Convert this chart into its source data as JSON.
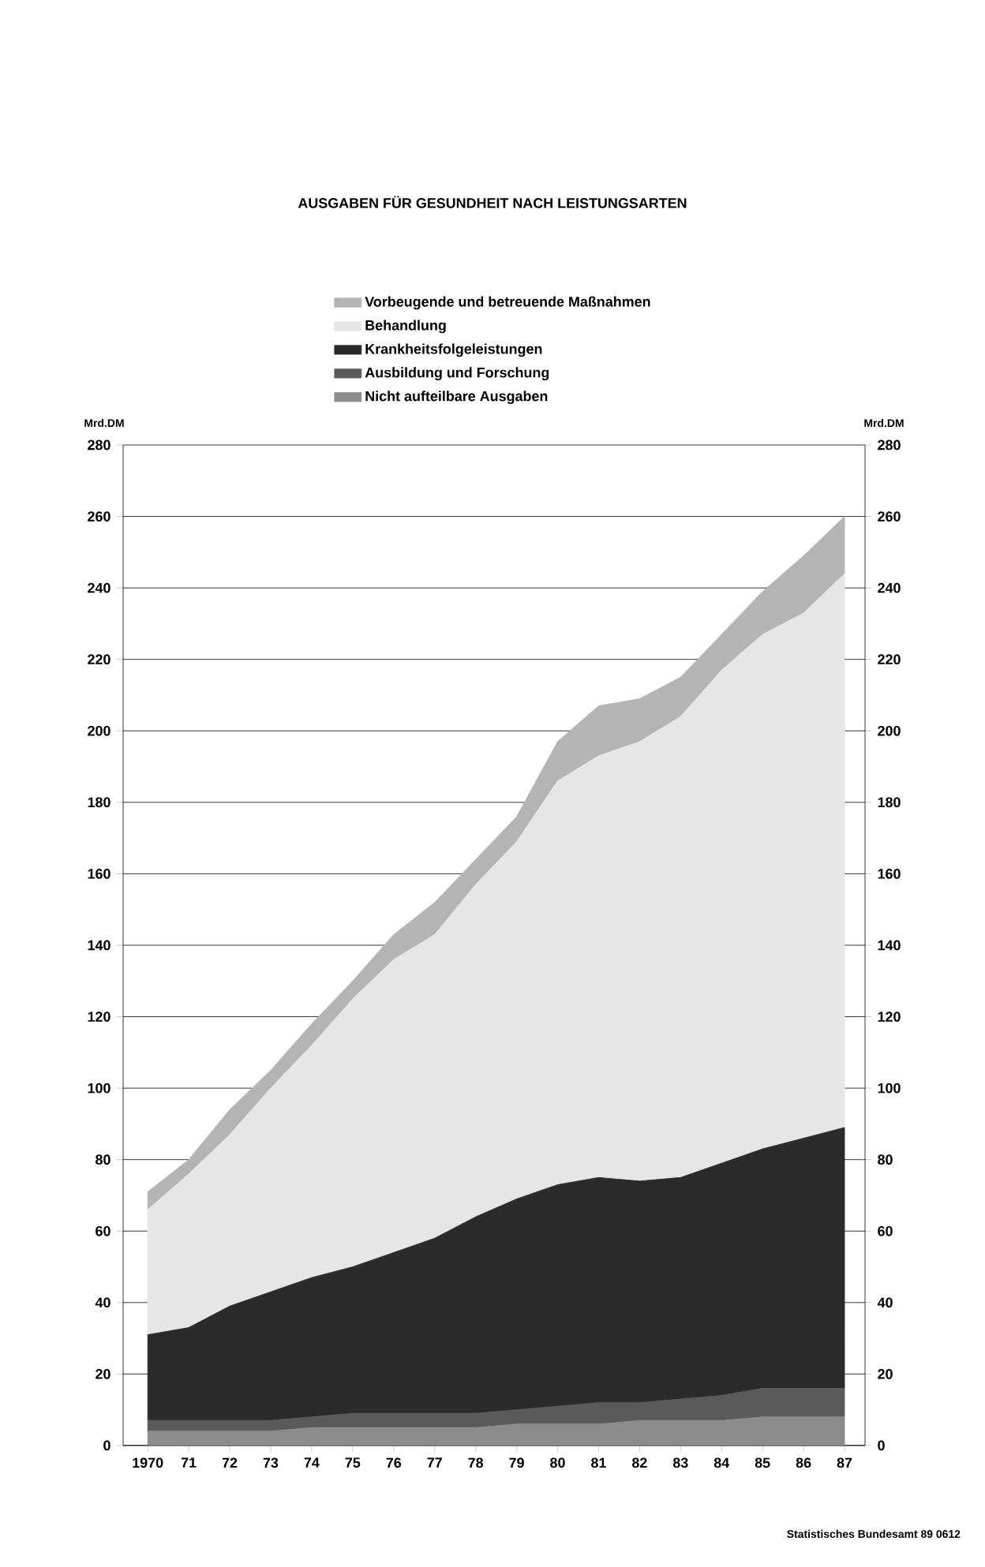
{
  "chart_data": {
    "type": "area",
    "stacked": true,
    "title": "AUSGABEN FÜR GESUNDHEIT NACH LEISTUNGSARTEN",
    "categories": [
      "1970",
      "71",
      "72",
      "73",
      "74",
      "75",
      "76",
      "77",
      "78",
      "79",
      "80",
      "81",
      "82",
      "83",
      "84",
      "85",
      "86",
      "87"
    ],
    "series": [
      {
        "name": "Nicht aufteilbare Ausgaben",
        "color": "#8c8c8c",
        "values": [
          4,
          4,
          4,
          4,
          5,
          5,
          5,
          5,
          5,
          6,
          6,
          6,
          7,
          7,
          7,
          8,
          8,
          8
        ]
      },
      {
        "name": "Ausbildung und Forschung",
        "color": "#5a5a5a",
        "values": [
          3,
          3,
          3,
          3,
          3,
          4,
          4,
          4,
          4,
          4,
          5,
          6,
          5,
          6,
          7,
          8,
          8,
          8
        ]
      },
      {
        "name": "Krankheitsfolgeleistungen",
        "color": "#2b2b2b",
        "values": [
          24,
          26,
          32,
          36,
          39,
          41,
          45,
          49,
          55,
          59,
          62,
          63,
          62,
          62,
          65,
          67,
          70,
          73
        ]
      },
      {
        "name": "Behandlung",
        "color": "#e6e6e6",
        "values": [
          35,
          43,
          48,
          57,
          65,
          75,
          82,
          85,
          93,
          100,
          113,
          118,
          123,
          129,
          138,
          144,
          147,
          155
        ]
      },
      {
        "name": "Vorbeugende und betreuende Maßnahmen",
        "color": "#b4b4b4",
        "values": [
          5,
          4,
          7,
          5,
          6,
          5,
          7,
          9,
          7,
          7,
          11,
          14,
          12,
          11,
          10,
          12,
          16,
          16
        ]
      }
    ],
    "ylabel": "Mrd.DM",
    "y2label": "Mrd.DM",
    "ylim": [
      0,
      280
    ],
    "yticks": [
      0,
      20,
      40,
      60,
      80,
      100,
      120,
      140,
      160,
      180,
      200,
      220,
      240,
      260,
      280
    ],
    "y2lim": [
      0,
      280
    ],
    "y2ticks": [
      0,
      20,
      40,
      60,
      80,
      100,
      120,
      140,
      160,
      180,
      200,
      220,
      240,
      260,
      280
    ],
    "grid": "y",
    "legend": "top",
    "annotations": [
      "Statistisches Bundesamt 89 0612"
    ]
  }
}
